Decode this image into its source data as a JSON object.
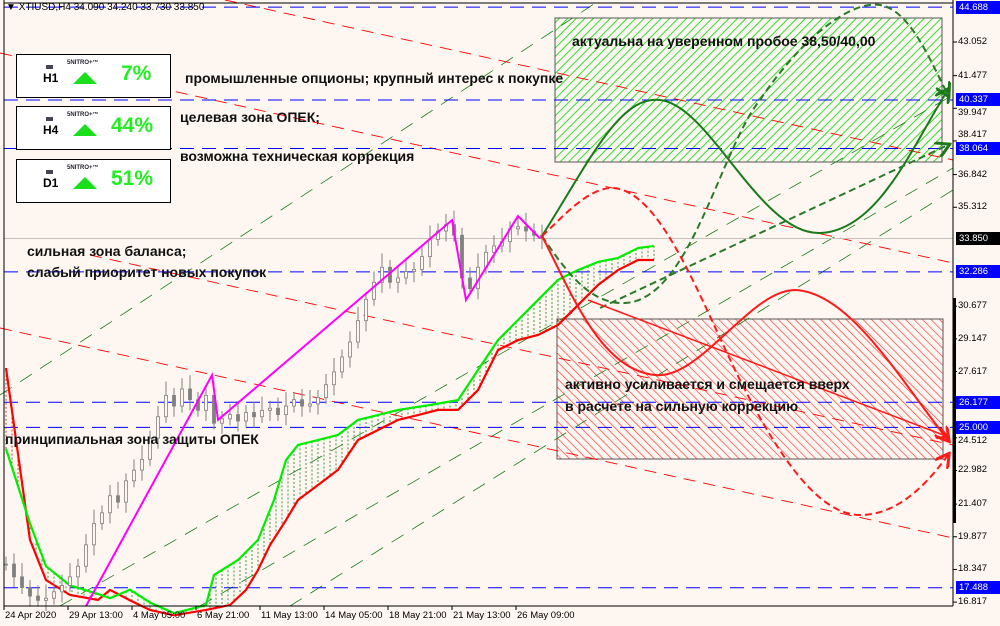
{
  "header": {
    "symbol": "XTIUSD,H4",
    "ohlc": "34.090 34.240 33.730 33.850"
  },
  "panels": [
    {
      "timeframe": "H1",
      "brand": "5NITRO+™",
      "percent": "7%",
      "direction": "up"
    },
    {
      "timeframe": "H4",
      "brand": "5NITRO+™",
      "percent": "44%",
      "direction": "up"
    },
    {
      "timeframe": "D1",
      "brand": "5NITRO+™",
      "percent": "51%",
      "direction": "up"
    }
  ],
  "annotations": {
    "options": "промышленные опционы; крупный интерес к покупке",
    "target": "целевая зона ОПЕК;",
    "correction": "возможна техническая коррекция",
    "balance1": "сильная зона баланса;",
    "balance2": "слабый приоритет новых покупок",
    "defense": "принципиальная зона защиты ОПЕК",
    "green_zone": "актуальна на уверенном пробое 38,50/40,00",
    "red_zone1": "активно усиливается и смещается вверх",
    "red_zone2": "в расчете на сильную коррекцию"
  },
  "colors": {
    "background": "#fef7f1",
    "level_line": "#0000ff",
    "zigzag": "#ff00ff",
    "span_a": "#00ff00",
    "span_b": "#ff0000",
    "forecast_bull": "#1a7a1a",
    "forecast_bear": "#ff1a1a",
    "candle": "#808080"
  },
  "chart_data": {
    "type": "candlestick",
    "symbol": "XTIUSD",
    "timeframe": "H4",
    "ylim": [
      16.817,
      44.688
    ],
    "y_ticks": [
      "43.052",
      "41.477",
      "39.947",
      "38.417",
      "36.842",
      "35.312",
      "30.677",
      "29.147",
      "27.617",
      "24.512",
      "22.982",
      "21.407",
      "19.877",
      "18.347",
      "16.817"
    ],
    "x_ticks": [
      "24 Apr 2020",
      "29 Apr 13:00",
      "4 May 05:00",
      "6 May 21:00",
      "11 May 13:00",
      "14 May 05:00",
      "18 May 21:00",
      "21 May 13:00",
      "26 May 09:00"
    ],
    "current_price": "33.850",
    "levels": [
      "44.688",
      "40.337",
      "38.064",
      "32.286",
      "26.177",
      "25.000",
      "17.488"
    ],
    "closes_every_2_bars": [
      18.6,
      18.0,
      17.5,
      17.1,
      16.9,
      17.0,
      17.3,
      17.6,
      18.0,
      18.5,
      19.5,
      20.5,
      21.0,
      21.8,
      21.5,
      22.5,
      23.0,
      23.5,
      24.5,
      25.5,
      26.5,
      26.0,
      26.8,
      26.3,
      25.8,
      26.5,
      25.2,
      25.4,
      25.6,
      25.3,
      25.7,
      25.5,
      25.8,
      25.9,
      25.6,
      26.0,
      26.3,
      26.0,
      26.1,
      26.4,
      27.0,
      27.6,
      28.3,
      29.0,
      30.0,
      31.0,
      31.8,
      32.5,
      31.8,
      32.0,
      32.3,
      32.4,
      33.0,
      33.8,
      34.2,
      34.5,
      34.0,
      32.0,
      31.5,
      32.5,
      33.2,
      33.5,
      33.7,
      34.3,
      34.4,
      34.2,
      34.0,
      33.85
    ],
    "zigzag": [
      [
        20,
        16.63
      ],
      [
        51.5,
        27.45
      ],
      [
        53,
        25.35
      ],
      [
        111.5,
        34.71
      ],
      [
        115,
        30.97
      ],
      [
        128,
        34.9
      ],
      [
        133.5,
        33.85
      ]
    ],
    "span_a": [
      [
        0,
        24.0
      ],
      [
        6,
        20.5
      ],
      [
        10,
        18.5
      ],
      [
        16,
        17.6
      ],
      [
        23,
        17.2
      ],
      [
        26,
        17.0
      ],
      [
        31,
        17.4
      ],
      [
        36,
        16.8
      ],
      [
        42,
        16.3
      ],
      [
        50,
        16.68
      ],
      [
        52,
        18.09
      ],
      [
        58,
        18.79
      ],
      [
        63,
        19.73
      ],
      [
        67,
        21.6
      ],
      [
        70,
        23.47
      ],
      [
        73,
        24.18
      ],
      [
        78,
        24.41
      ],
      [
        83,
        24.65
      ],
      [
        88,
        25.35
      ],
      [
        93,
        25.58
      ],
      [
        98,
        25.82
      ],
      [
        106,
        26.05
      ],
      [
        113,
        26.28
      ],
      [
        118,
        27.69
      ],
      [
        123,
        29.09
      ],
      [
        128,
        30.03
      ],
      [
        133,
        30.97
      ],
      [
        138,
        31.91
      ],
      [
        143,
        32.37
      ],
      [
        148,
        32.75
      ],
      [
        153,
        32.94
      ],
      [
        158,
        33.4
      ],
      [
        162,
        33.5
      ]
    ],
    "span_b": [
      [
        0,
        27.78
      ],
      [
        6,
        19.73
      ],
      [
        10,
        17.85
      ],
      [
        16,
        17.15
      ],
      [
        23,
        16.92
      ],
      [
        26,
        17.39
      ],
      [
        31,
        16.9
      ],
      [
        36,
        16.45
      ],
      [
        42,
        16.2
      ],
      [
        50,
        16.45
      ],
      [
        56,
        16.68
      ],
      [
        60,
        17.39
      ],
      [
        63,
        18.32
      ],
      [
        66,
        19.49
      ],
      [
        70,
        20.66
      ],
      [
        73,
        21.6
      ],
      [
        78,
        22.3
      ],
      [
        83,
        23.01
      ],
      [
        88,
        24.41
      ],
      [
        93,
        24.88
      ],
      [
        98,
        25.35
      ],
      [
        103,
        25.58
      ],
      [
        108,
        25.82
      ],
      [
        113,
        25.82
      ],
      [
        118,
        26.75
      ],
      [
        123,
        28.62
      ],
      [
        128,
        29.09
      ],
      [
        133,
        29.33
      ],
      [
        138,
        29.8
      ],
      [
        143,
        30.73
      ],
      [
        148,
        31.67
      ],
      [
        153,
        32.37
      ],
      [
        158,
        32.84
      ],
      [
        162,
        32.84
      ]
    ],
    "grid": false
  }
}
